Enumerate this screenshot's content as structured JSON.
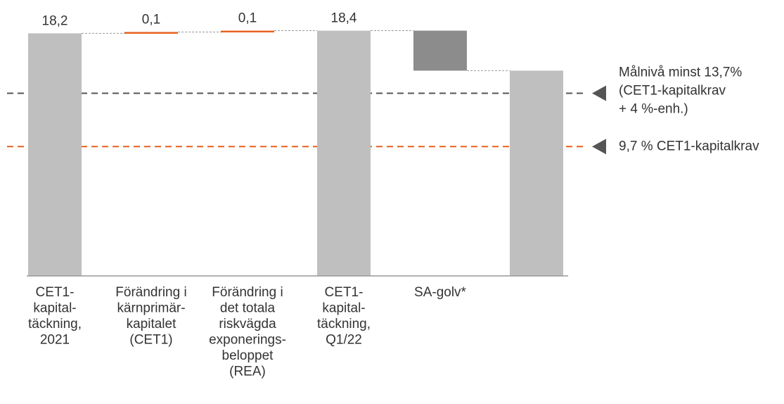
{
  "chart_data": {
    "type": "waterfall",
    "categories": [
      [
        "CET1-",
        "kapital-",
        "täckning,",
        "2021"
      ],
      [
        "Förändring i",
        "kärnprimär-",
        "kapitalet",
        "(CET1)"
      ],
      [
        "Förändring i",
        "det totala",
        "riskvägda",
        "exponerings-",
        "beloppet",
        "(REA)"
      ],
      [
        "CET1-",
        "kapital-",
        "täckning,",
        "Q1/22"
      ],
      [
        "SA-golv*"
      ],
      null
    ],
    "values": [
      18.2,
      0.1,
      0.1,
      18.4,
      -3.0,
      15.4
    ],
    "value_labels": [
      "18,2",
      "0,1",
      "0,1",
      "18,4",
      null,
      null
    ],
    "measures": [
      "total",
      "delta",
      "delta",
      "total",
      "delta",
      "total"
    ],
    "colors": {
      "total": "#bfbfbf",
      "increase": "#e8601c",
      "decrease": "#8c8c8c"
    },
    "ylim": [
      0,
      20.7
    ],
    "reference_lines": [
      {
        "value": 13.7,
        "color": "#555555",
        "label": [
          "Målnivå minst 13,7%",
          "(CET1-kapitalkrav",
          "+ 4 %-enh.)"
        ]
      },
      {
        "value": 9.7,
        "color": "#e8601c",
        "label": [
          "9,7 % CET1-kapitalkrav"
        ]
      }
    ]
  }
}
